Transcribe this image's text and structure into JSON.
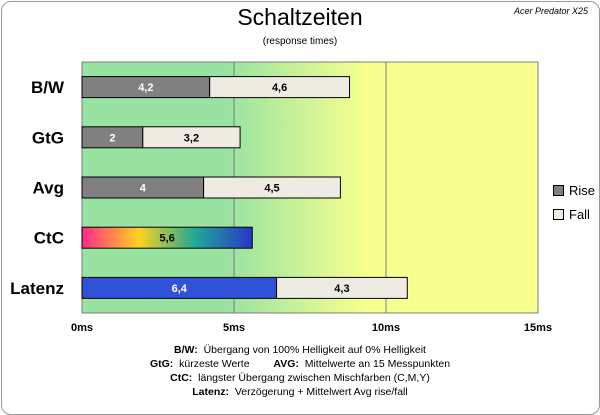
{
  "title": "Schaltzeiten",
  "subtitle": "(response times)",
  "brand": "Acer Predator X25",
  "chart_data": {
    "type": "bar",
    "orientation": "horizontal",
    "stacked": true,
    "categories": [
      "B/W",
      "GtG",
      "Avg",
      "CtC",
      "Latenz"
    ],
    "series": [
      {
        "name": "Rise",
        "values": [
          4.2,
          2,
          4,
          5.6,
          6.4
        ],
        "value_labels": [
          "4,2",
          "2",
          "4",
          "5,6",
          "6,4"
        ]
      },
      {
        "name": "Fall",
        "values": [
          4.6,
          3.2,
          4.5,
          null,
          4.3
        ],
        "value_labels": [
          "4,6",
          "3,2",
          "4,5",
          "",
          "4,3"
        ]
      }
    ],
    "xlim": [
      0,
      15
    ],
    "x_ticks": [
      0,
      5,
      10,
      15
    ],
    "x_tick_labels": [
      "0ms",
      "5ms",
      "10ms",
      "15ms"
    ],
    "grid": true,
    "legend_position": "right",
    "background_zones": [
      "green",
      "yellow"
    ],
    "colors": {
      "rise": "#808080",
      "fall": "#eeebe2",
      "latenz_rise": "#2f52d8",
      "ctc_gradient": [
        "#ff2a8a",
        "#ffd21e",
        "#1fa896",
        "#2a36c8"
      ],
      "zone_green": "#98e3a2",
      "zone_yellow": "#f7ff8e"
    }
  },
  "legend": [
    {
      "label": "Rise",
      "color": "#808080"
    },
    {
      "label": "Fall",
      "color": "#eeebe2"
    }
  ],
  "notes": [
    [
      {
        "key": "B/W:",
        "text": "Übergang von 100% Helligkeit auf 0% Helligkeit"
      }
    ],
    [
      {
        "key": "GtG:",
        "text": "kürzeste Werte"
      },
      {
        "key": "AVG:",
        "text": "Mittelwerte an 15 Messpunkten"
      }
    ],
    [
      {
        "key": "CtC:",
        "text": "längster Übergang zwischen Mischfarben (C,M,Y)"
      }
    ],
    [
      {
        "key": "Latenz:",
        "text": "Verzögerung + Mittelwert Avg rise/fall"
      }
    ]
  ]
}
